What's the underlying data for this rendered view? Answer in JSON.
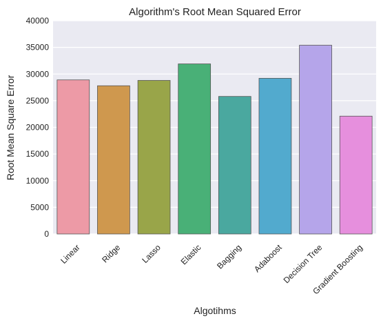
{
  "chart_data": {
    "type": "bar",
    "title": "Algorithm's Root Mean Squared Error",
    "xlabel": "Algotihms",
    "ylabel": "Root Mean Square Error",
    "categories": [
      "Linear",
      "Ridge",
      "Lasso",
      "Elastic",
      "Bagging",
      "Adaboost",
      "Decision Tree",
      "Gradient Boosting"
    ],
    "values": [
      28900,
      27800,
      28800,
      31900,
      25800,
      29200,
      35400,
      22100
    ],
    "colors": [
      "#ed9aa6",
      "#cf984e",
      "#99a549",
      "#49b077",
      "#4aa89f",
      "#52aace",
      "#b5a5ea",
      "#e68fdd"
    ],
    "ylim": [
      0,
      40000
    ],
    "yticks": [
      0,
      5000,
      10000,
      15000,
      20000,
      25000,
      30000,
      35000,
      40000
    ],
    "grid": true,
    "plot_background": "#eaeaf2"
  }
}
